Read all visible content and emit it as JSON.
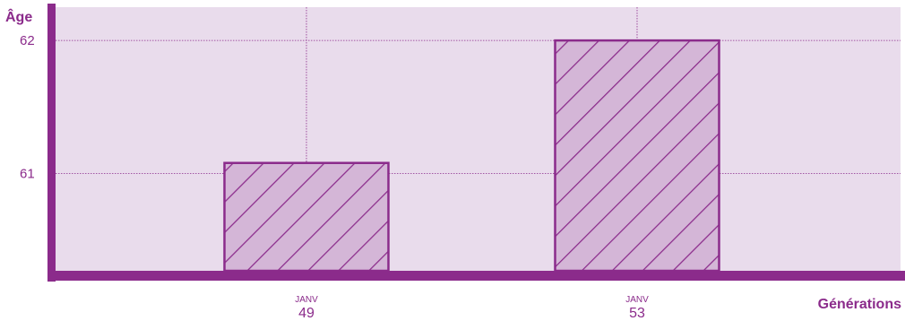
{
  "colors": {
    "axis": "#8b2b8b",
    "plot_bg": "#e9dcec",
    "bar_fill": "#d4b6d7",
    "bar_stroke": "#8b2b8b",
    "text": "#8b2b8b"
  },
  "chart_data": {
    "type": "bar",
    "ylabel": "Âge",
    "xlabel": "Générations",
    "ylim": [
      60.27,
      62.25
    ],
    "yticks": [
      {
        "value": 61,
        "label": "61"
      },
      {
        "value": 62,
        "label": "62"
      }
    ],
    "categories": [
      {
        "month": "JANV",
        "year": "49"
      },
      {
        "month": "JANV",
        "year": "53"
      }
    ],
    "values": [
      61.08,
      62.0
    ],
    "grid": true,
    "pattern": "diagonal-hatch"
  }
}
